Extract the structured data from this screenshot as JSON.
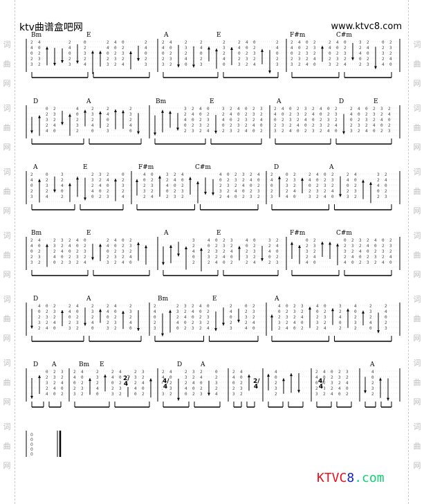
{
  "header": {
    "title": "ktv曲谱盒吧网",
    "url": "www.ktvc8.com"
  },
  "watermark": {
    "chars": [
      "词",
      "曲",
      "网"
    ]
  },
  "rows": [
    {
      "chords": [
        "Bm",
        "E",
        "A",
        "E",
        "F#m",
        "C#m"
      ]
    },
    {
      "chords": [
        "D",
        "A",
        "Bm",
        "E",
        "A",
        "D",
        "E"
      ]
    },
    {
      "chords": [
        "A",
        "E",
        "F#m",
        "C#m",
        "D",
        "A"
      ]
    },
    {
      "chords": [
        "Bm",
        "E",
        "A",
        "E",
        "F#m",
        "C#m"
      ]
    },
    {
      "chords": [
        "D",
        "A",
        "Bm",
        "E",
        "A"
      ]
    },
    {
      "chords": [
        "D",
        "A",
        "Bm",
        "E",
        "D",
        "A",
        "A"
      ]
    }
  ],
  "time_signatures": [
    "2/4",
    "4/4",
    "2/4",
    "4/4"
  ],
  "logo": {
    "part1": "KTVC",
    "part2": "8",
    "part3": ".com",
    "colors": {
      "part1": "#e8101a",
      "part2": "#1020d0",
      "part3": "#10d070"
    }
  }
}
